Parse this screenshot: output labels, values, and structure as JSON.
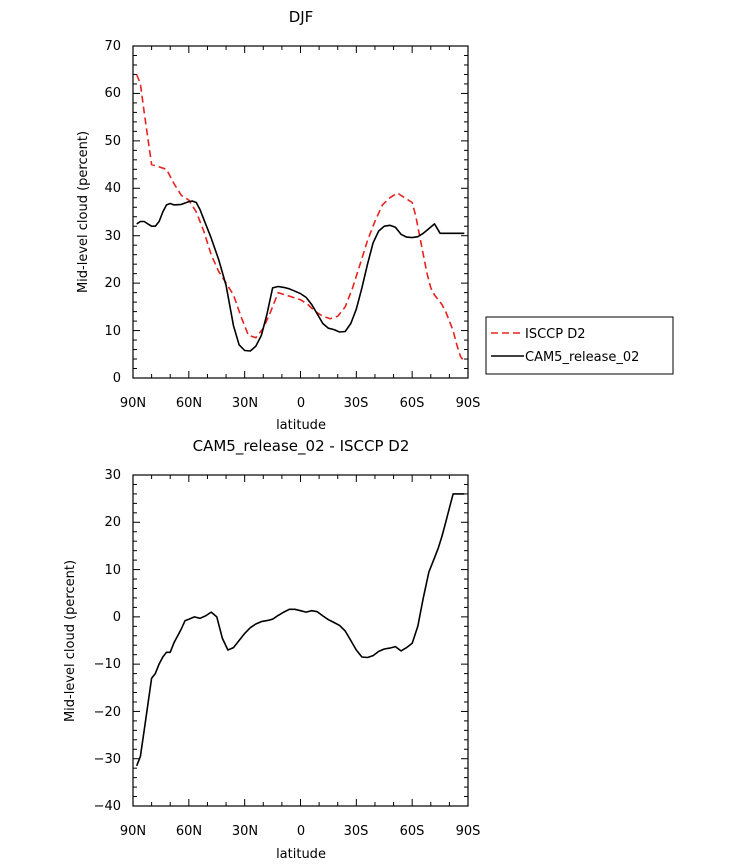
{
  "chart_data": [
    {
      "type": "line",
      "title": "DJF",
      "xlabel": "latitude",
      "ylabel": "Mid-level cloud (percent)",
      "xlim": [
        90,
        -90
      ],
      "ylim": [
        0,
        70
      ],
      "xticks": [
        90,
        60,
        30,
        0,
        -30,
        -60,
        -90
      ],
      "xtick_labels": [
        "90N",
        "60N",
        "30N",
        "0",
        "30S",
        "60S",
        "90S"
      ],
      "yticks": [
        0,
        10,
        20,
        30,
        40,
        50,
        60,
        70
      ],
      "ytick_labels": [
        "0",
        "10",
        "20",
        "30",
        "40",
        "50",
        "60",
        "70"
      ],
      "legend_position": "right",
      "series": [
        {
          "name": "ISCCP D2",
          "color": "#e8231f",
          "dash": "dashed",
          "x": [
            88,
            86,
            84,
            80,
            76,
            72,
            68,
            64,
            60,
            56,
            52,
            48,
            44,
            40,
            36,
            32,
            28,
            24,
            20,
            16,
            12,
            8,
            4,
            0,
            -4,
            -8,
            -12,
            -16,
            -20,
            -24,
            -28,
            -32,
            -36,
            -40,
            -44,
            -48,
            -52,
            -56,
            -60,
            -62,
            -64,
            -66,
            -68,
            -70,
            -72,
            -74,
            -76,
            -78,
            -80,
            -82,
            -84,
            -86,
            -88
          ],
          "values": [
            64,
            62,
            56,
            45,
            44.5,
            44,
            41,
            38.5,
            37.5,
            35,
            31,
            26,
            22.5,
            20,
            17.5,
            13,
            9,
            8.5,
            10.5,
            14,
            18,
            17.5,
            17,
            16.5,
            15.5,
            14,
            13,
            12.5,
            13,
            15,
            19,
            24,
            29,
            33,
            36.5,
            38,
            39,
            38,
            37,
            34,
            30,
            26,
            22,
            19,
            17.5,
            16.5,
            15.5,
            14,
            12,
            10,
            7,
            4.5,
            3.5
          ]
        },
        {
          "name": "CAM5_release_02",
          "color": "#000000",
          "dash": "solid",
          "x": [
            88,
            86,
            84,
            82,
            80,
            78,
            76,
            74,
            72,
            70,
            68,
            64,
            60,
            58,
            56,
            54,
            52,
            48,
            44,
            40,
            36,
            33,
            30,
            27,
            24,
            21,
            18,
            15,
            12,
            9,
            6,
            3,
            0,
            -3,
            -6,
            -9,
            -12,
            -15,
            -18,
            -21,
            -24,
            -27,
            -30,
            -33,
            -36,
            -39,
            -42,
            -45,
            -48,
            -51,
            -54,
            -57,
            -60,
            -63,
            -66,
            -69,
            -72,
            -75,
            -78,
            -81,
            -84,
            -86,
            -88
          ],
          "values": [
            32.5,
            33,
            33,
            32.5,
            32,
            32,
            33,
            35,
            36.5,
            36.8,
            36.5,
            36.6,
            37.2,
            37.3,
            37,
            35.5,
            33.5,
            29.5,
            25,
            19.5,
            11,
            7,
            5.8,
            5.7,
            6.7,
            9,
            13.5,
            19,
            19.3,
            19.1,
            18.8,
            18.3,
            17.8,
            17,
            15.5,
            13.5,
            11.5,
            10.5,
            10.2,
            9.7,
            9.8,
            11.5,
            14.5,
            19,
            24,
            28.5,
            31,
            32,
            32.2,
            31.8,
            30.3,
            29.7,
            29.6,
            29.8,
            30.5,
            31.5,
            32.5,
            30.5,
            30.5,
            30.5,
            30.5,
            30.5,
            30.5
          ]
        }
      ]
    },
    {
      "type": "line",
      "title": "CAM5_release_02 - ISCCP D2",
      "xlabel": "latitude",
      "ylabel": "Mid-level cloud (percent)",
      "xlim": [
        90,
        -90
      ],
      "ylim": [
        -40,
        30
      ],
      "xticks": [
        90,
        60,
        30,
        0,
        -30,
        -60,
        -90
      ],
      "xtick_labels": [
        "90N",
        "60N",
        "30N",
        "0",
        "30S",
        "60S",
        "90S"
      ],
      "yticks": [
        -40,
        -30,
        -20,
        -10,
        0,
        10,
        20,
        30
      ],
      "ytick_labels": [
        "−40",
        "−30",
        "−20",
        "−10",
        "0",
        "10",
        "20",
        "30"
      ],
      "series": [
        {
          "color": "#000000",
          "dash": "solid",
          "x": [
            88,
            86,
            84,
            82,
            80,
            78,
            76,
            74,
            72,
            70,
            68,
            66,
            64,
            62,
            60,
            57,
            54,
            51,
            48,
            45,
            42,
            39,
            36,
            33,
            30,
            27,
            24,
            21,
            18,
            15,
            12,
            9,
            6,
            3,
            0,
            -3,
            -6,
            -9,
            -12,
            -15,
            -18,
            -21,
            -24,
            -27,
            -30,
            -33,
            -36,
            -39,
            -42,
            -45,
            -48,
            -51,
            -54,
            -57,
            -60,
            -63,
            -66,
            -69,
            -72,
            -74,
            -76,
            -78,
            -80,
            -82,
            -84,
            -86,
            -88
          ],
          "values": [
            -31.5,
            -29.5,
            -24,
            -18.5,
            -13,
            -12,
            -10,
            -8.5,
            -7.5,
            -7.5,
            -5.5,
            -4,
            -2.5,
            -0.8,
            -0.5,
            0,
            -0.3,
            0.2,
            1,
            0,
            -4.5,
            -7,
            -6.5,
            -5,
            -3.5,
            -2.3,
            -1.5,
            -1,
            -0.8,
            -0.5,
            0.3,
            1,
            1.6,
            1.6,
            1.3,
            1,
            1.3,
            1.1,
            0.2,
            -0.6,
            -1.2,
            -1.8,
            -3,
            -5,
            -7,
            -8.5,
            -8.6,
            -8.2,
            -7.3,
            -6.8,
            -6.6,
            -6.3,
            -7.2,
            -6.5,
            -5.6,
            -2,
            4,
            9.5,
            12.5,
            14.5,
            17,
            20,
            23,
            26,
            26,
            26,
            26
          ]
        }
      ]
    }
  ]
}
